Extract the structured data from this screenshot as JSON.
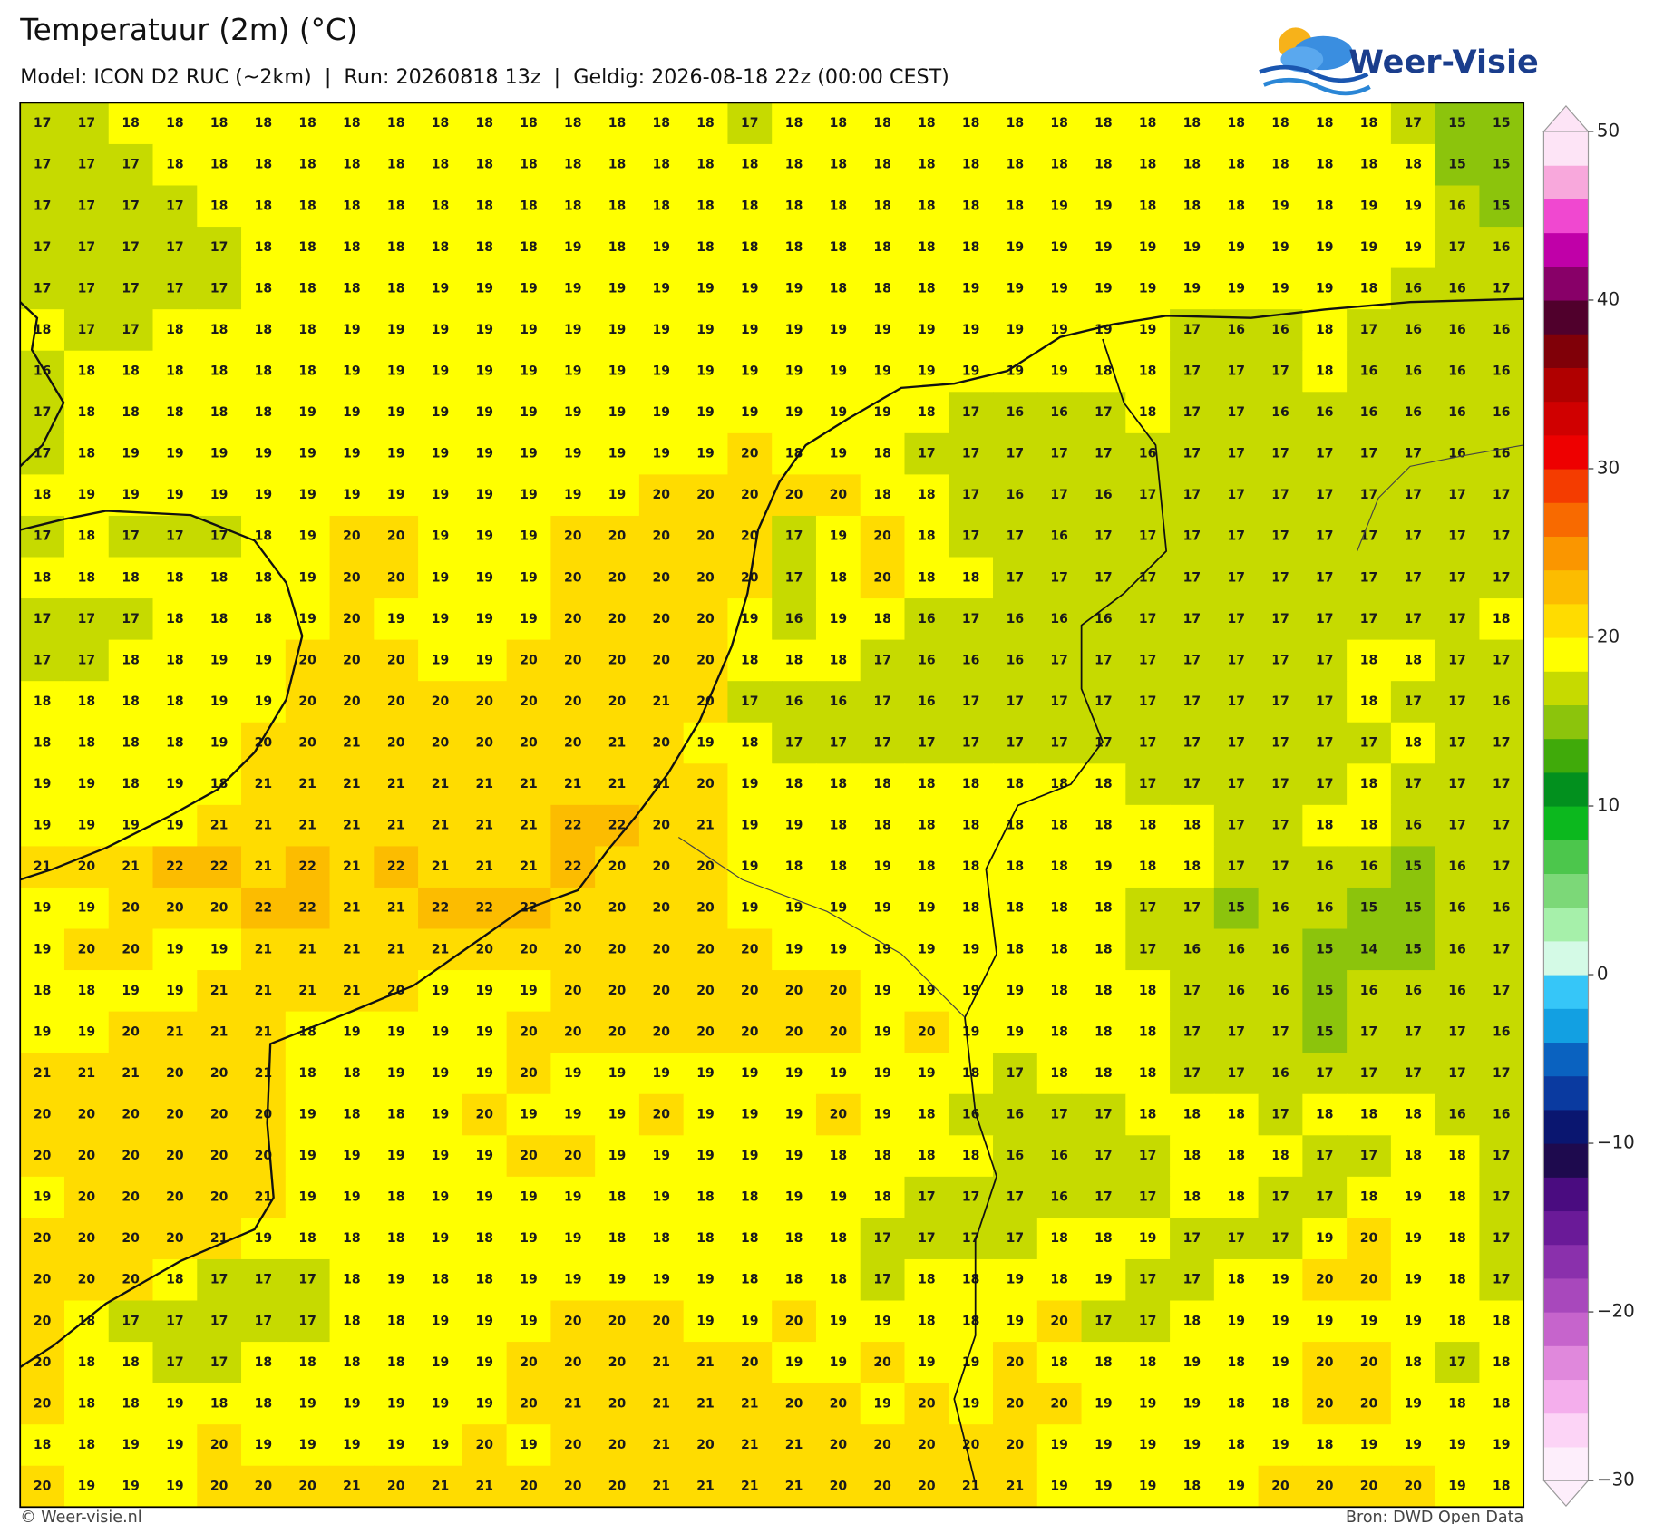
{
  "header": {
    "title": "Temperatuur (2m) (°C)",
    "subtitle": "Model: ICON D2 RUC (~2km)  |  Run: 20260818 13z  |  Geldig: 2026-08-18 22z (00:00 CEST)",
    "logo": "Weer-Visie"
  },
  "map": {
    "type": "heatmap",
    "values": [
      [
        17,
        17,
        18,
        18,
        18,
        18,
        18,
        18,
        18,
        18,
        18,
        18,
        18,
        18,
        18,
        18,
        17,
        18,
        18,
        18,
        18,
        18,
        18,
        18,
        18,
        18,
        18,
        18,
        18,
        18,
        18,
        17,
        15,
        15
      ],
      [
        17,
        17,
        17,
        18,
        18,
        18,
        18,
        18,
        18,
        18,
        18,
        18,
        18,
        18,
        18,
        18,
        18,
        18,
        18,
        18,
        18,
        18,
        18,
        18,
        18,
        18,
        18,
        18,
        18,
        18,
        18,
        18,
        15,
        15
      ],
      [
        17,
        17,
        17,
        17,
        18,
        18,
        18,
        18,
        18,
        18,
        18,
        18,
        18,
        18,
        18,
        18,
        18,
        18,
        18,
        18,
        18,
        18,
        18,
        19,
        19,
        18,
        18,
        18,
        19,
        18,
        19,
        19,
        16,
        15
      ],
      [
        17,
        17,
        17,
        17,
        17,
        18,
        18,
        18,
        18,
        18,
        18,
        18,
        19,
        18,
        19,
        18,
        18,
        18,
        18,
        18,
        18,
        18,
        19,
        19,
        19,
        19,
        19,
        19,
        19,
        19,
        19,
        19,
        17,
        16
      ],
      [
        17,
        17,
        17,
        17,
        17,
        18,
        18,
        18,
        18,
        19,
        19,
        19,
        19,
        19,
        19,
        19,
        19,
        19,
        18,
        18,
        18,
        19,
        19,
        19,
        19,
        19,
        19,
        19,
        19,
        19,
        18,
        16,
        16,
        17
      ],
      [
        18,
        17,
        17,
        18,
        18,
        18,
        18,
        19,
        19,
        19,
        19,
        19,
        19,
        19,
        19,
        19,
        19,
        19,
        19,
        19,
        19,
        19,
        19,
        19,
        19,
        19,
        17,
        16,
        16,
        18,
        17,
        16,
        16,
        16
      ],
      [
        16,
        18,
        18,
        18,
        18,
        18,
        18,
        19,
        19,
        19,
        19,
        19,
        19,
        19,
        19,
        19,
        19,
        19,
        19,
        19,
        19,
        19,
        19,
        19,
        18,
        18,
        17,
        17,
        17,
        18,
        16,
        16,
        16,
        16
      ],
      [
        17,
        18,
        18,
        18,
        18,
        18,
        19,
        19,
        19,
        19,
        19,
        19,
        19,
        19,
        19,
        19,
        19,
        19,
        19,
        19,
        18,
        17,
        16,
        16,
        17,
        18,
        17,
        17,
        16,
        16,
        16,
        16,
        16,
        16
      ],
      [
        17,
        18,
        19,
        19,
        19,
        19,
        19,
        19,
        19,
        19,
        19,
        19,
        19,
        19,
        19,
        19,
        20,
        18,
        19,
        18,
        17,
        17,
        17,
        17,
        17,
        16,
        17,
        17,
        17,
        17,
        17,
        17,
        16,
        16
      ],
      [
        18,
        19,
        19,
        19,
        19,
        19,
        19,
        19,
        19,
        19,
        19,
        19,
        19,
        19,
        20,
        20,
        20,
        20,
        20,
        18,
        18,
        17,
        16,
        17,
        16,
        17,
        17,
        17,
        17,
        17,
        17,
        17,
        17,
        17
      ],
      [
        17,
        18,
        17,
        17,
        17,
        18,
        19,
        20,
        20,
        19,
        19,
        19,
        20,
        20,
        20,
        20,
        20,
        17,
        19,
        20,
        18,
        17,
        17,
        16,
        17,
        17,
        17,
        17,
        17,
        17,
        17,
        17,
        17,
        17
      ],
      [
        18,
        18,
        18,
        18,
        18,
        18,
        19,
        20,
        20,
        19,
        19,
        19,
        20,
        20,
        20,
        20,
        20,
        17,
        18,
        20,
        18,
        18,
        17,
        17,
        17,
        17,
        17,
        17,
        17,
        17,
        17,
        17,
        17,
        17
      ],
      [
        17,
        17,
        17,
        18,
        18,
        18,
        19,
        20,
        19,
        19,
        19,
        19,
        20,
        20,
        20,
        20,
        19,
        16,
        19,
        18,
        16,
        17,
        16,
        16,
        16,
        17,
        17,
        17,
        17,
        17,
        17,
        17,
        17,
        18
      ],
      [
        17,
        17,
        18,
        18,
        19,
        19,
        20,
        20,
        20,
        19,
        19,
        20,
        20,
        20,
        20,
        20,
        18,
        18,
        18,
        17,
        16,
        16,
        16,
        17,
        17,
        17,
        17,
        17,
        17,
        17,
        18,
        18,
        17,
        17
      ],
      [
        18,
        18,
        18,
        18,
        19,
        19,
        20,
        20,
        20,
        20,
        20,
        20,
        20,
        20,
        21,
        20,
        17,
        16,
        16,
        17,
        16,
        17,
        17,
        17,
        17,
        17,
        17,
        17,
        17,
        17,
        18,
        17,
        17,
        16
      ],
      [
        18,
        18,
        18,
        18,
        19,
        20,
        20,
        21,
        20,
        20,
        20,
        20,
        20,
        21,
        20,
        19,
        18,
        17,
        17,
        17,
        17,
        17,
        17,
        17,
        17,
        17,
        17,
        17,
        17,
        17,
        17,
        18,
        17,
        17
      ],
      [
        19,
        19,
        18,
        19,
        18,
        21,
        21,
        21,
        21,
        21,
        21,
        21,
        21,
        21,
        21,
        20,
        19,
        18,
        18,
        18,
        18,
        18,
        18,
        18,
        18,
        17,
        17,
        17,
        17,
        17,
        18,
        17,
        17,
        17
      ],
      [
        19,
        19,
        19,
        19,
        21,
        21,
        21,
        21,
        21,
        21,
        21,
        21,
        22,
        22,
        20,
        21,
        19,
        19,
        18,
        18,
        18,
        18,
        18,
        18,
        18,
        18,
        18,
        17,
        17,
        18,
        18,
        16,
        17,
        17
      ],
      [
        21,
        20,
        21,
        22,
        22,
        21,
        22,
        21,
        22,
        21,
        21,
        21,
        22,
        20,
        20,
        20,
        19,
        18,
        18,
        19,
        18,
        18,
        18,
        18,
        19,
        18,
        18,
        17,
        17,
        16,
        16,
        15,
        16,
        17
      ],
      [
        19,
        19,
        20,
        20,
        20,
        22,
        22,
        21,
        21,
        22,
        22,
        22,
        20,
        20,
        20,
        20,
        19,
        19,
        19,
        19,
        19,
        18,
        18,
        18,
        18,
        17,
        17,
        15,
        16,
        16,
        15,
        15,
        16,
        16
      ],
      [
        19,
        20,
        20,
        19,
        19,
        21,
        21,
        21,
        21,
        21,
        20,
        20,
        20,
        20,
        20,
        20,
        20,
        19,
        19,
        19,
        19,
        19,
        18,
        18,
        18,
        17,
        16,
        16,
        16,
        15,
        14,
        15,
        16,
        17
      ],
      [
        18,
        18,
        19,
        19,
        21,
        21,
        21,
        21,
        20,
        19,
        19,
        19,
        20,
        20,
        20,
        20,
        20,
        20,
        20,
        19,
        19,
        19,
        19,
        18,
        18,
        18,
        17,
        16,
        16,
        15,
        16,
        16,
        16,
        17
      ],
      [
        19,
        19,
        20,
        21,
        21,
        21,
        18,
        19,
        19,
        19,
        19,
        20,
        20,
        20,
        20,
        20,
        20,
        20,
        20,
        19,
        20,
        19,
        19,
        18,
        18,
        18,
        17,
        17,
        17,
        15,
        17,
        17,
        17,
        16
      ],
      [
        21,
        21,
        21,
        20,
        20,
        21,
        18,
        18,
        19,
        19,
        19,
        20,
        19,
        19,
        19,
        19,
        19,
        19,
        19,
        19,
        19,
        18,
        17,
        18,
        18,
        18,
        17,
        17,
        16,
        17,
        17,
        17,
        17,
        17
      ],
      [
        20,
        20,
        20,
        20,
        20,
        20,
        19,
        18,
        18,
        19,
        20,
        19,
        19,
        19,
        20,
        19,
        19,
        19,
        20,
        19,
        18,
        16,
        16,
        17,
        17,
        18,
        18,
        18,
        17,
        18,
        18,
        18,
        16,
        16
      ],
      [
        20,
        20,
        20,
        20,
        20,
        20,
        19,
        19,
        19,
        19,
        19,
        20,
        20,
        19,
        19,
        19,
        19,
        19,
        18,
        18,
        18,
        18,
        16,
        16,
        17,
        17,
        18,
        18,
        18,
        17,
        17,
        18,
        18,
        17
      ],
      [
        19,
        20,
        20,
        20,
        20,
        21,
        19,
        19,
        18,
        19,
        19,
        19,
        19,
        18,
        19,
        18,
        18,
        19,
        19,
        18,
        17,
        17,
        17,
        16,
        17,
        17,
        18,
        18,
        17,
        17,
        18,
        19,
        18,
        17
      ],
      [
        20,
        20,
        20,
        20,
        21,
        19,
        18,
        18,
        18,
        19,
        18,
        19,
        19,
        18,
        18,
        18,
        18,
        18,
        18,
        17,
        17,
        17,
        17,
        18,
        18,
        19,
        17,
        17,
        17,
        19,
        20,
        19,
        18,
        17
      ],
      [
        20,
        20,
        20,
        18,
        17,
        17,
        17,
        18,
        19,
        18,
        18,
        19,
        19,
        19,
        19,
        19,
        18,
        18,
        18,
        17,
        18,
        18,
        19,
        18,
        19,
        17,
        17,
        18,
        19,
        20,
        20,
        19,
        18,
        17
      ],
      [
        20,
        18,
        17,
        17,
        17,
        17,
        17,
        18,
        18,
        19,
        19,
        19,
        20,
        20,
        20,
        19,
        19,
        20,
        19,
        19,
        18,
        18,
        19,
        20,
        17,
        17,
        18,
        19,
        19,
        19,
        19,
        19,
        18,
        18
      ],
      [
        20,
        18,
        18,
        17,
        17,
        18,
        18,
        18,
        18,
        19,
        19,
        20,
        20,
        20,
        21,
        21,
        20,
        19,
        19,
        20,
        19,
        19,
        20,
        18,
        18,
        18,
        19,
        18,
        19,
        20,
        20,
        18,
        17,
        18
      ],
      [
        20,
        18,
        18,
        19,
        18,
        18,
        19,
        19,
        19,
        19,
        19,
        20,
        21,
        20,
        21,
        21,
        21,
        20,
        20,
        19,
        20,
        19,
        20,
        20,
        19,
        19,
        19,
        18,
        18,
        20,
        20,
        19,
        18,
        18
      ],
      [
        18,
        18,
        19,
        19,
        20,
        19,
        19,
        19,
        19,
        19,
        20,
        19,
        20,
        20,
        21,
        20,
        21,
        21,
        20,
        20,
        20,
        20,
        20,
        19,
        19,
        19,
        19,
        18,
        19,
        18,
        19,
        19,
        19,
        19
      ],
      [
        20,
        19,
        19,
        19,
        20,
        20,
        20,
        21,
        20,
        21,
        21,
        20,
        20,
        20,
        21,
        21,
        21,
        21,
        20,
        20,
        20,
        21,
        21,
        19,
        19,
        19,
        18,
        19,
        20,
        20,
        20,
        20,
        19,
        18
      ]
    ]
  },
  "colorbar": {
    "clim": [
      -30,
      50
    ],
    "colors": [
      "#fdeefb",
      "#fcd4f6",
      "#f4aeec",
      "#e088dc",
      "#c664cc",
      "#a848bc",
      "#8a30ac",
      "#6a1a98",
      "#4a0c80",
      "#1e0a4e",
      "#0a1670",
      "#0a3aa0",
      "#0a62c0",
      "#12a0e2",
      "#36c6f8",
      "#d4fae6",
      "#a6f0aa",
      "#7cd878",
      "#4cc64c",
      "#0cb81e",
      "#02901e",
      "#40aa0a",
      "#8cc40c",
      "#c6da00",
      "#ffff00",
      "#ffdc00",
      "#fcbc00",
      "#fa9600",
      "#f86a00",
      "#f43c00",
      "#ee0000",
      "#d00000",
      "#b00000",
      "#800008",
      "#50002c",
      "#880068",
      "#c000a8",
      "#f048d0",
      "#f8a8dc",
      "#fde4f6"
    ],
    "ticks": [
      {
        "value": -30,
        "label": "−30"
      },
      {
        "value": -20,
        "label": "−20"
      },
      {
        "value": -10,
        "label": "−10"
      },
      0,
      10,
      20,
      30,
      40,
      50
    ]
  },
  "footer": {
    "left": "© Weer-visie.nl",
    "right": "Bron: DWD Open Data"
  }
}
